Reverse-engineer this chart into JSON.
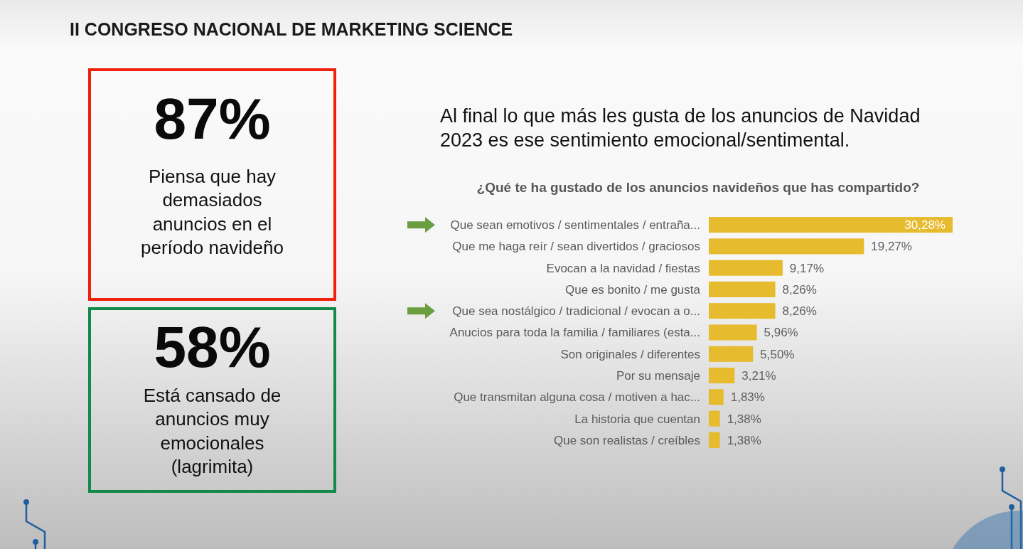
{
  "chart_data": [
    {
      "type": "other",
      "title": "87%",
      "subtitle": "Piensa que hay demasiados anuncios en el período navideño",
      "color": "#f0200c",
      "annotations": [
        "II CONGRESO NACIONAL DE MARKETING SCIENCE"
      ]
    },
    {
      "type": "other",
      "title": "58%",
      "subtitle": "Está cansado de anuncios muy emocionales (lagrimita)",
      "color": "#138a4a"
    },
    {
      "type": "bar",
      "orientation": "horizontal",
      "title": "¿Qué te ha gustado de los anuncios navideños que has compartido?",
      "subtitle": "Al final lo que más les gusta de los anuncios de Navidad 2023 es ese sentimiento emocional/sentimental.",
      "categories": [
        "Que sean emotivos / sentimentales / entraña...",
        "Que me haga reír / sean divertidos / graciosos",
        "Evocan a la navidad / fiestas",
        "Que es bonito / me gusta",
        "Que sea nostálgico / tradicional / evocan a o...",
        "Anucios para toda la familia / familiares (esta...",
        "Son originales / diferentes",
        "Por su mensaje",
        "Que transmitan alguna cosa / motiven a hac...",
        "La historia que cuentan",
        "Que son realistas / creíbles"
      ],
      "values": [
        30.28,
        19.27,
        9.17,
        8.26,
        8.26,
        5.96,
        5.5,
        3.21,
        1.83,
        1.38,
        1.38
      ],
      "value_labels": [
        "30,28%",
        "19,27%",
        "9,17%",
        "8,26%",
        "8,26%",
        "5,96%",
        "5,50%",
        "3,21%",
        "1,83%",
        "1,38%",
        "1,38%"
      ],
      "color": "#e6bb2e",
      "tick_labels": "y"
    }
  ]
}
